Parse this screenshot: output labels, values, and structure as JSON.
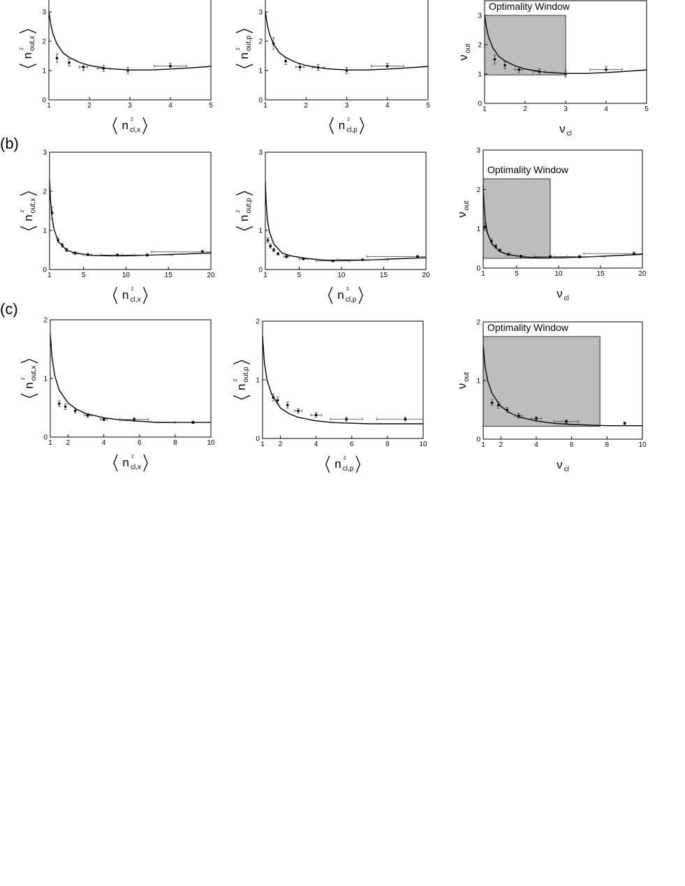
{
  "chart_data": [
    {
      "type": "scatter",
      "xlabel": {
        "base": "n",
        "sup": "2",
        "sub": "cl,x"
      },
      "ylabel": {
        "base": "n",
        "sup": "2",
        "sub": "out,x"
      },
      "xlim": [
        1,
        5
      ],
      "ylim": [
        0,
        3.5
      ],
      "xticks": [
        1,
        2,
        3,
        4,
        5
      ],
      "yticks": [
        0,
        1,
        2,
        3
      ],
      "points": {
        "x": [
          1.2,
          1.5,
          1.85,
          2.35,
          2.95,
          4.0
        ],
        "y": [
          1.42,
          1.27,
          1.12,
          1.07,
          1.0,
          1.15
        ],
        "xerr": [
          null,
          null,
          0.1,
          0.15,
          null,
          0.4
        ],
        "yerr": [
          0.15,
          0.12,
          0.12,
          0.1,
          0.1,
          0.1
        ]
      },
      "fit": {
        "x": [
          1,
          1.05,
          1.1,
          1.2,
          1.35,
          1.5,
          1.75,
          2,
          2.5,
          3,
          3.5,
          4,
          4.5,
          5
        ],
        "y": [
          3,
          2.55,
          2.25,
          1.9,
          1.6,
          1.45,
          1.28,
          1.17,
          1.06,
          1.02,
          1.02,
          1.05,
          1.09,
          1.14
        ]
      }
    },
    {
      "type": "scatter",
      "xlabel": {
        "base": "n",
        "sup": "2",
        "sub": "cl,p"
      },
      "ylabel": {
        "base": "n",
        "sup": "2",
        "sub": "out,p"
      },
      "xlim": [
        1,
        5
      ],
      "ylim": [
        0,
        3.5
      ],
      "xticks": [
        1,
        2,
        3,
        4,
        5
      ],
      "yticks": [
        0,
        1,
        2,
        3
      ],
      "points": {
        "x": [
          1.2,
          1.5,
          1.85,
          2.3,
          3.0,
          4.0
        ],
        "y": [
          1.92,
          1.32,
          1.12,
          1.1,
          1.0,
          1.15
        ],
        "xerr": [
          null,
          null,
          0.1,
          0.15,
          null,
          0.4
        ],
        "yerr": [
          0.2,
          0.12,
          0.1,
          0.1,
          0.1,
          0.1
        ]
      },
      "fit": {
        "x": [
          1,
          1.05,
          1.1,
          1.2,
          1.35,
          1.5,
          1.75,
          2,
          2.5,
          3,
          3.5,
          4,
          4.5,
          5
        ],
        "y": [
          3,
          2.55,
          2.25,
          1.9,
          1.6,
          1.45,
          1.28,
          1.17,
          1.06,
          1.02,
          1.02,
          1.05,
          1.09,
          1.14
        ]
      }
    },
    {
      "type": "scatter",
      "xlabel": {
        "base": "ν",
        "sub": "cl"
      },
      "ylabel": {
        "base": "ν",
        "sub": "out"
      },
      "xlim": [
        1,
        5
      ],
      "ylim": [
        0,
        3.5
      ],
      "xticks": [
        1,
        2,
        3,
        4,
        5
      ],
      "yticks": [
        0,
        1,
        2,
        3
      ],
      "window": {
        "label": "Optimality Window",
        "x": [
          1,
          3
        ],
        "y": [
          0.97,
          3
        ]
      },
      "points": {
        "x": [
          1.25,
          1.5,
          1.85,
          2.35,
          3.0,
          4.0
        ],
        "y": [
          1.5,
          1.3,
          1.15,
          1.08,
          1.0,
          1.15
        ],
        "xerr": [
          null,
          null,
          0.1,
          0.15,
          null,
          0.4
        ],
        "yerr": [
          0.15,
          0.12,
          0.1,
          0.1,
          0.1,
          0.1
        ]
      },
      "fit": {
        "x": [
          1,
          1.05,
          1.1,
          1.2,
          1.35,
          1.5,
          1.75,
          2,
          2.5,
          3,
          3.5,
          4,
          4.5,
          5
        ],
        "y": [
          3,
          2.55,
          2.25,
          1.9,
          1.6,
          1.45,
          1.28,
          1.17,
          1.06,
          1.02,
          1.02,
          1.05,
          1.09,
          1.14
        ]
      }
    },
    {
      "type": "scatter",
      "panel": "(b)",
      "xlabel": {
        "base": "n",
        "sup": "2",
        "sub": "cl,x"
      },
      "ylabel": {
        "base": "n",
        "sup": "2",
        "sub": "out,x"
      },
      "xlim": [
        1,
        20
      ],
      "ylim": [
        0,
        3
      ],
      "xticks": [
        1,
        5,
        10,
        15,
        20
      ],
      "yticks": [
        0,
        1,
        2,
        3
      ],
      "points": {
        "x": [
          1.3,
          2,
          2.5,
          3,
          4,
          5.5,
          9,
          12.5,
          19
        ],
        "y": [
          1.45,
          0.75,
          0.62,
          0.5,
          0.42,
          0.38,
          0.37,
          0.37,
          0.45
        ],
        "xerr": [
          null,
          null,
          null,
          null,
          0.3,
          0.5,
          2,
          3,
          6
        ],
        "yerr": [
          0.15,
          0.06,
          0.05,
          0.04,
          0.03,
          0.03,
          0.03,
          0.03,
          0.04
        ]
      },
      "fit": {
        "x": [
          1,
          1.1,
          1.25,
          1.5,
          2,
          3,
          4,
          6,
          8,
          10,
          13,
          16,
          20
        ],
        "y": [
          2.3,
          1.8,
          1.4,
          1.05,
          0.72,
          0.5,
          0.42,
          0.36,
          0.35,
          0.35,
          0.37,
          0.39,
          0.42
        ]
      }
    },
    {
      "type": "scatter",
      "xlabel": {
        "base": "n",
        "sup": "2",
        "sub": "cl,p"
      },
      "ylabel": {
        "base": "n",
        "sup": "2",
        "sub": "out,p"
      },
      "xlim": [
        1,
        20
      ],
      "ylim": [
        0,
        3
      ],
      "xticks": [
        1,
        5,
        10,
        15,
        20
      ],
      "yticks": [
        0,
        1,
        3
      ],
      "points": {
        "x": [
          1.3,
          1.6,
          2,
          2.5,
          3.5,
          5.5,
          9,
          12.5,
          19
        ],
        "y": [
          0.75,
          0.6,
          0.5,
          0.4,
          0.33,
          0.27,
          0.22,
          0.25,
          0.33
        ],
        "xerr": [
          null,
          null,
          null,
          null,
          0.3,
          0.5,
          2,
          3,
          6
        ],
        "yerr": [
          0.06,
          0.05,
          0.04,
          0.03,
          0.03,
          0.02,
          0.02,
          0.02,
          0.03
        ]
      },
      "fit": {
        "x": [
          1,
          1.1,
          1.25,
          1.5,
          2,
          3,
          4,
          6,
          8,
          10,
          13,
          16,
          20
        ],
        "y": [
          2.25,
          1.7,
          1.25,
          0.95,
          0.65,
          0.42,
          0.35,
          0.28,
          0.24,
          0.23,
          0.24,
          0.27,
          0.3
        ]
      }
    },
    {
      "type": "scatter",
      "xlabel": {
        "base": "ν",
        "sub": "cl"
      },
      "ylabel": {
        "base": "ν",
        "sub": "out"
      },
      "xlim": [
        1,
        20
      ],
      "ylim": [
        0,
        3
      ],
      "xticks": [
        1,
        5,
        10,
        15,
        20
      ],
      "yticks": [
        0,
        1,
        2,
        3
      ],
      "window": {
        "label": "Optimality Window",
        "x": [
          1,
          9
        ],
        "y": [
          0.25,
          2.27
        ]
      },
      "points": {
        "x": [
          1.2,
          2,
          2.5,
          3,
          4,
          5.5,
          9,
          12.5,
          19
        ],
        "y": [
          1.05,
          0.68,
          0.55,
          0.45,
          0.35,
          0.3,
          0.29,
          0.29,
          0.37
        ],
        "xerr": [
          null,
          null,
          null,
          null,
          0.3,
          0.5,
          2,
          3,
          6
        ],
        "yerr": [
          0.1,
          0.06,
          0.05,
          0.04,
          0.03,
          0.03,
          0.03,
          0.03,
          0.04
        ]
      },
      "fit": {
        "x": [
          1,
          1.1,
          1.25,
          1.5,
          2,
          3,
          4,
          6,
          8,
          10,
          13,
          16,
          20
        ],
        "y": [
          2.1,
          1.6,
          1.2,
          0.9,
          0.62,
          0.42,
          0.34,
          0.28,
          0.26,
          0.26,
          0.28,
          0.31,
          0.35
        ]
      }
    },
    {
      "type": "scatter",
      "panel": "(c)",
      "xlabel": {
        "base": "n",
        "sup": "2",
        "sub": "cl,x"
      },
      "ylabel": {
        "base": "n",
        "sup": "2",
        "sub": "out,x"
      },
      "xlim": [
        1,
        10
      ],
      "ylim": [
        0,
        2
      ],
      "xticks": [
        1,
        2,
        4,
        6,
        8,
        10
      ],
      "yticks": [
        0,
        1,
        2
      ],
      "points": {
        "x": [
          1.5,
          1.85,
          2.4,
          3.1,
          4,
          5.7,
          9
        ],
        "y": [
          0.57,
          0.52,
          0.45,
          0.37,
          0.3,
          0.3,
          0.25
        ],
        "xerr": [
          null,
          null,
          null,
          0.2,
          0.2,
          0.8,
          1
        ],
        "yerr": [
          0.05,
          0.05,
          0.04,
          0.03,
          0.02,
          0.03,
          0.02
        ]
      },
      "fit": {
        "x": [
          1,
          1.1,
          1.25,
          1.5,
          2,
          2.5,
          3,
          4,
          5,
          6,
          7,
          8,
          9,
          10
        ],
        "y": [
          1.75,
          1.35,
          1.05,
          0.8,
          0.58,
          0.47,
          0.4,
          0.33,
          0.29,
          0.27,
          0.25,
          0.25,
          0.25,
          0.25
        ]
      }
    },
    {
      "type": "scatter",
      "xlabel": {
        "base": "n",
        "sup": "2",
        "sub": "cl,p"
      },
      "ylabel": {
        "base": "n",
        "sup": "2",
        "sub": "out,p"
      },
      "xlim": [
        1,
        10
      ],
      "ylim": [
        0,
        2
      ],
      "xticks": [
        1,
        2,
        4,
        6,
        8,
        10
      ],
      "yticks": [
        0,
        1,
        2
      ],
      "points": {
        "x": [
          1.6,
          1.85,
          2.4,
          3,
          4,
          5.7,
          9
        ],
        "y": [
          0.7,
          0.65,
          0.57,
          0.47,
          0.4,
          0.33,
          0.33
        ],
        "xerr": [
          null,
          null,
          null,
          0.2,
          0.3,
          0.9,
          1.6
        ],
        "yerr": [
          0.06,
          0.06,
          0.05,
          0.04,
          0.04,
          0.03,
          0.03
        ]
      },
      "fit": {
        "x": [
          1,
          1.1,
          1.25,
          1.5,
          2,
          2.5,
          3,
          4,
          5,
          6,
          7,
          8,
          9,
          10
        ],
        "y": [
          1.75,
          1.3,
          1.0,
          0.76,
          0.52,
          0.42,
          0.36,
          0.3,
          0.27,
          0.26,
          0.25,
          0.25,
          0.25,
          0.25
        ]
      }
    },
    {
      "type": "scatter",
      "xlabel": {
        "base": "ν",
        "sub": "cl"
      },
      "ylabel": {
        "base": "ν",
        "sub": "out"
      },
      "xlim": [
        1,
        10
      ],
      "ylim": [
        0,
        2
      ],
      "xticks": [
        1,
        2,
        4,
        6,
        8,
        10
      ],
      "yticks": [
        0,
        1,
        2
      ],
      "window": {
        "label": "Optimality Window",
        "x": [
          1,
          7.6
        ],
        "y": [
          0.22,
          1.75
        ]
      },
      "points": {
        "x": [
          1.5,
          1.85,
          2.35,
          3,
          4,
          5.7,
          9
        ],
        "y": [
          0.62,
          0.58,
          0.5,
          0.4,
          0.35,
          0.3,
          0.27
        ],
        "xerr": [
          null,
          null,
          null,
          0.2,
          0.3,
          0.7,
          null
        ],
        "yerr": [
          0.05,
          0.05,
          0.04,
          0.04,
          0.03,
          0.03,
          0.02
        ]
      },
      "fit": {
        "x": [
          1,
          1.1,
          1.25,
          1.5,
          2,
          2.5,
          3,
          4,
          5,
          6,
          7,
          8,
          9,
          10
        ],
        "y": [
          1.6,
          1.25,
          1.0,
          0.78,
          0.56,
          0.45,
          0.38,
          0.31,
          0.27,
          0.25,
          0.24,
          0.23,
          0.23,
          0.23
        ]
      }
    }
  ]
}
